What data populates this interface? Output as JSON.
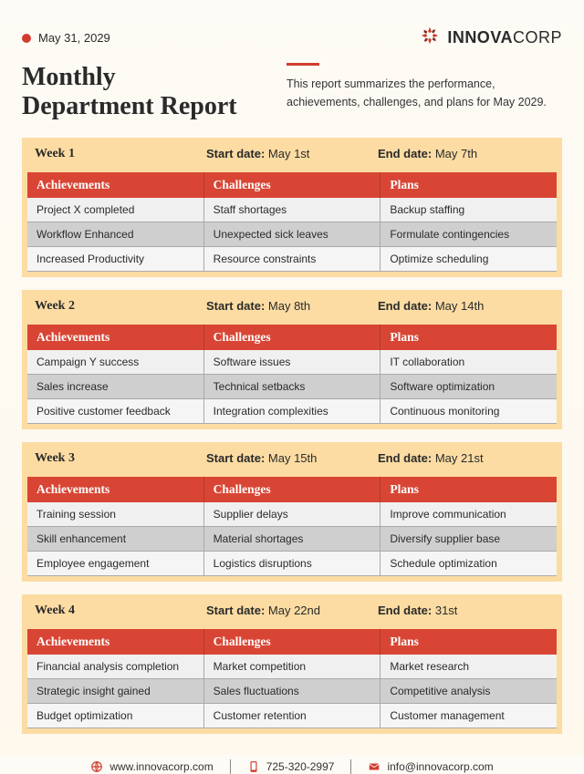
{
  "header": {
    "date": "May 31, 2029",
    "brand_strong": "INNOVA",
    "brand_light": "CORP"
  },
  "title_line1": "Monthly",
  "title_line2": "Department Report",
  "subtitle": "This report summarizes the performance, achievements, challenges, and plans for May 2029.",
  "columns": {
    "c1": "Achievements",
    "c2": "Challenges",
    "c3": "Plans"
  },
  "date_labels": {
    "start": "Start date:",
    "end": "End date:"
  },
  "weeks": [
    {
      "label": "Week 1",
      "start": "May 1st",
      "end": "May 7th",
      "rows": [
        [
          "Project X completed",
          "Staff shortages",
          "Backup staffing"
        ],
        [
          "Workflow Enhanced",
          "Unexpected sick leaves",
          "Formulate contingencies"
        ],
        [
          "Increased Productivity",
          "Resource constraints",
          "Optimize scheduling"
        ]
      ]
    },
    {
      "label": "Week 2",
      "start": "May 8th",
      "end": "May 14th",
      "rows": [
        [
          "Campaign Y success",
          "Software issues",
          "IT collaboration"
        ],
        [
          "Sales increase",
          "Technical setbacks",
          "Software optimization"
        ],
        [
          "Positive customer feedback",
          "Integration complexities",
          "Continuous monitoring"
        ]
      ]
    },
    {
      "label": "Week 3",
      "start": "May 15th",
      "end": "May 21st",
      "rows": [
        [
          "Training session",
          "Supplier delays",
          "Improve communication"
        ],
        [
          "Skill enhancement",
          "Material shortages",
          "Diversify supplier base"
        ],
        [
          "Employee engagement",
          "Logistics disruptions",
          "Schedule optimization"
        ]
      ]
    },
    {
      "label": "Week 4",
      "start": "May 22nd",
      "end": "31st",
      "rows": [
        [
          "Financial analysis completion",
          "Market competition",
          "Market research"
        ],
        [
          "Strategic insight gained",
          "Sales fluctuations",
          "Competitive analysis"
        ],
        [
          "Budget optimization",
          "Customer retention",
          "Customer management"
        ]
      ]
    }
  ],
  "footer": {
    "website": "www.innovacorp.com",
    "phone": "725-320-2997",
    "email": "info@innovacorp.com"
  },
  "colors": {
    "accent": "#d13c2f",
    "header_bg": "#fcdca3",
    "table_head": "#d94534"
  }
}
